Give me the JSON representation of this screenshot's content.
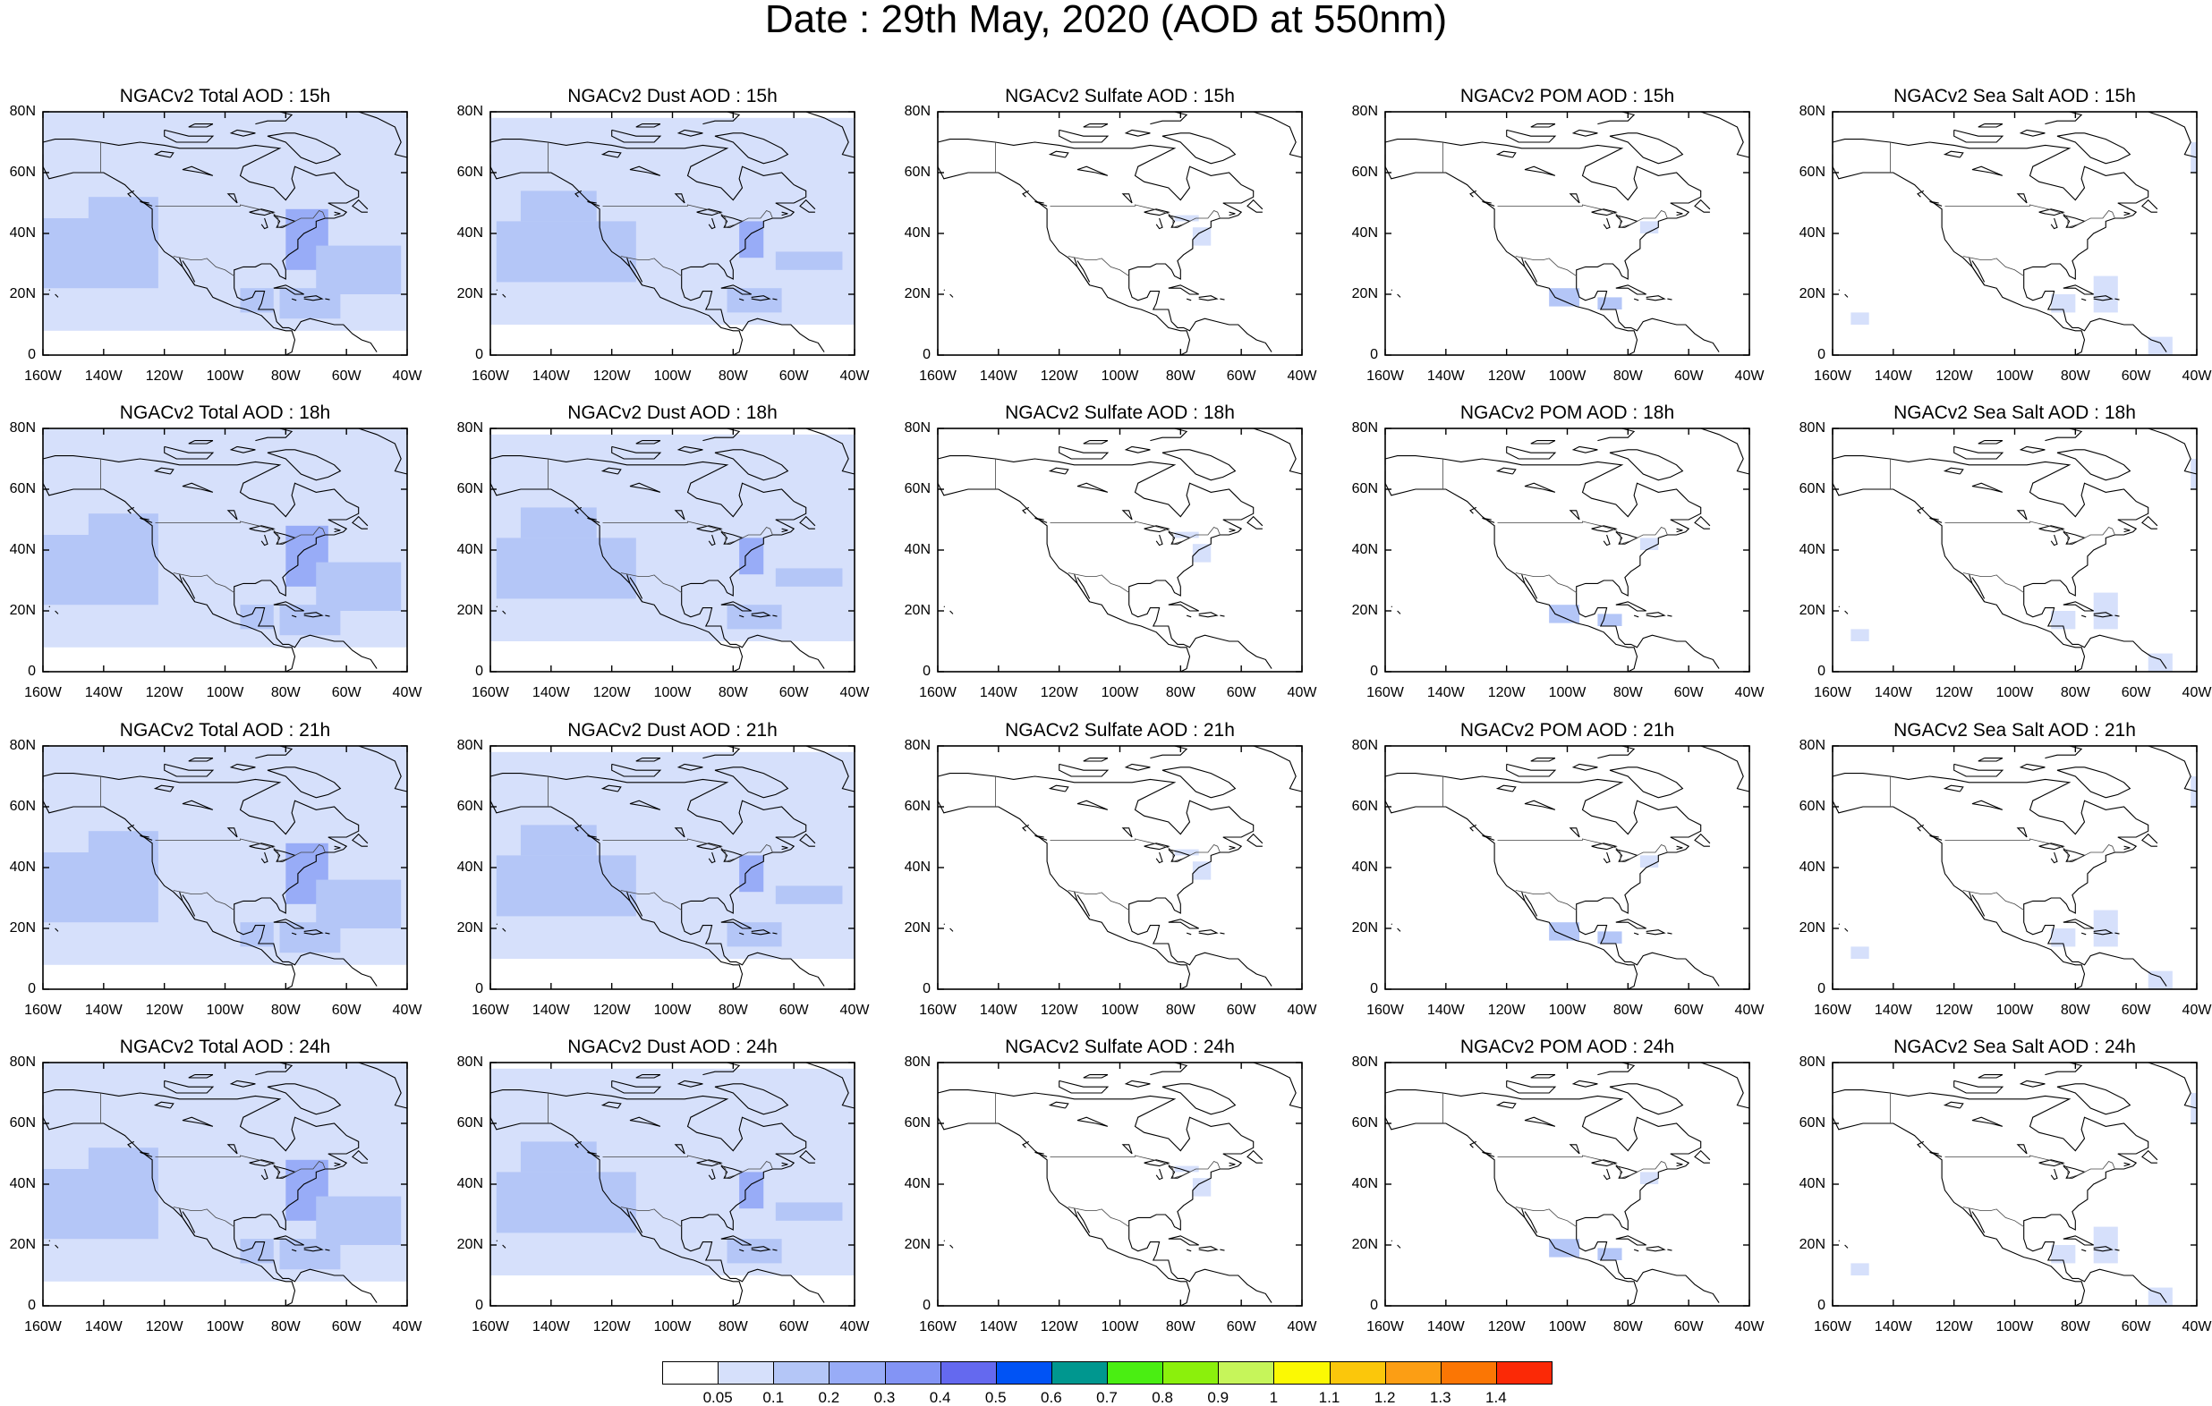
{
  "title": "Date : 29th May, 2020 (AOD at 550nm)",
  "panels": [
    [
      "NGACv2 Total AOD : 15h",
      "NGACv2 Dust AOD : 15h",
      "NGACv2 Sulfate AOD : 15h",
      "NGACv2 POM AOD : 15h",
      "NGACv2 Sea Salt AOD : 15h"
    ],
    [
      "NGACv2 Total AOD : 18h",
      "NGACv2 Dust AOD : 18h",
      "NGACv2 Sulfate AOD : 18h",
      "NGACv2 POM AOD : 18h",
      "NGACv2 Sea Salt AOD : 18h"
    ],
    [
      "NGACv2 Total AOD : 21h",
      "NGACv2 Dust AOD : 21h",
      "NGACv2 Sulfate AOD : 21h",
      "NGACv2 POM AOD : 21h",
      "NGACv2 Sea Salt AOD : 21h"
    ],
    [
      "NGACv2 Total AOD : 24h",
      "NGACv2 Dust AOD : 24h",
      "NGACv2 Sulfate AOD : 24h",
      "NGACv2 POM AOD : 24h",
      "NGACv2 Sea Salt  AOD : 24h"
    ]
  ],
  "lat_ticks": [
    "80N",
    "60N",
    "40N",
    "20N",
    "0"
  ],
  "lon_ticks": [
    "160W",
    "140W",
    "120W",
    "100W",
    "80W",
    "60W",
    "40W"
  ],
  "colorbar": {
    "labels": [
      "0.05",
      "0.1",
      "0.2",
      "0.3",
      "0.4",
      "0.5",
      "0.6",
      "0.7",
      "0.8",
      "0.9",
      "1",
      "1.1",
      "1.2",
      "1.3",
      "1.4"
    ],
    "colors": [
      "#ffffff",
      "#d6e0fb",
      "#b4c6f7",
      "#98acf7",
      "#8394f5",
      "#6469ef",
      "#0053f5",
      "#00978f",
      "#4aee12",
      "#8bf00c",
      "#c6f55a",
      "#fbf903",
      "#fbc70b",
      "#fc9e14",
      "#fb7604",
      "#fb2906"
    ]
  },
  "colors": {
    "aod_light": "#d6e0fb",
    "aod_medium": "#b4c6f7",
    "aod_strong": "#98acf7"
  }
}
